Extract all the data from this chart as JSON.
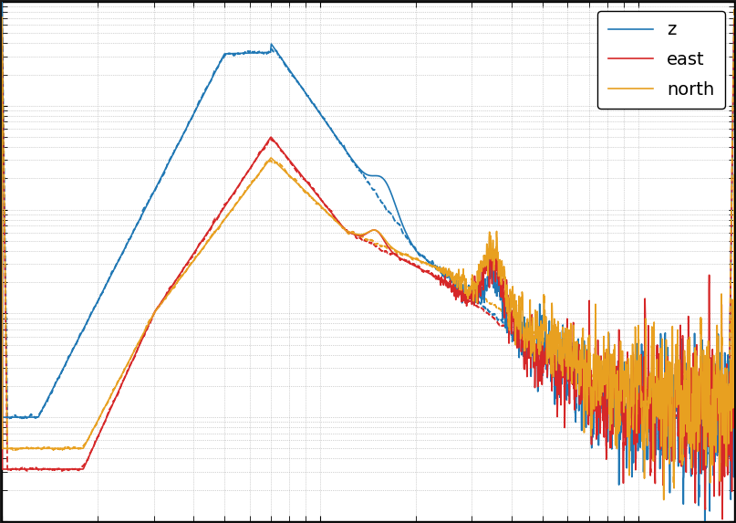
{
  "title": "",
  "xlabel": "",
  "ylabel": "",
  "xlim": [
    1,
    200
  ],
  "ylim": [
    1e-09,
    0.0001
  ],
  "legend_labels": [
    "z",
    "east",
    "north"
  ],
  "colors": {
    "z": "#1f77b4",
    "east": "#d62728",
    "north": "#e8a020"
  },
  "background_color": "#ffffff",
  "outer_background": "#1a1a1a",
  "grid_color": "#aaaaaa",
  "figsize": [
    8.07,
    5.73
  ],
  "dpi": 100
}
